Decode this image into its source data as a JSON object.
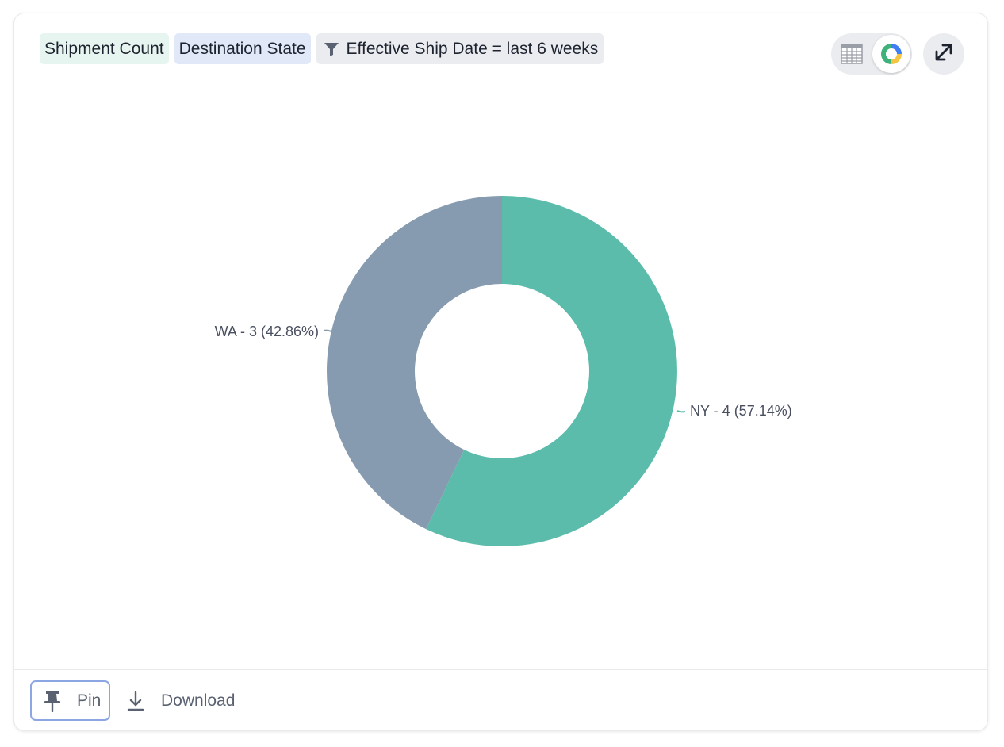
{
  "header": {
    "metric_chip": "Shipment Count",
    "attribute_chip": "Destination State",
    "filter_chip": "Effective Ship Date = last 6 weeks"
  },
  "toolbar": {
    "table_view_icon": "table-grid-icon",
    "chart_view_icon": "donut-chart-icon",
    "expand_icon": "expand-arrows-icon",
    "active_view": "chart"
  },
  "chart_data": {
    "type": "pie",
    "style": "donut",
    "categories": [
      "NY",
      "WA"
    ],
    "values": [
      4,
      3
    ],
    "percentages": [
      57.14,
      42.86
    ],
    "labels": [
      "NY - 4 (57.14%)",
      "WA - 3 (42.86%)"
    ],
    "colors": [
      "#5cbcab",
      "#879bb0"
    ],
    "title": "",
    "legend": "none"
  },
  "footer": {
    "pin_label": "Pin",
    "download_label": "Download"
  },
  "colors": {
    "metric_chip_bg": "#e6f5ef",
    "attribute_chip_bg": "#e1e8f8",
    "filter_chip_bg": "#ebecf0",
    "pin_border": "#8ca6e4"
  }
}
